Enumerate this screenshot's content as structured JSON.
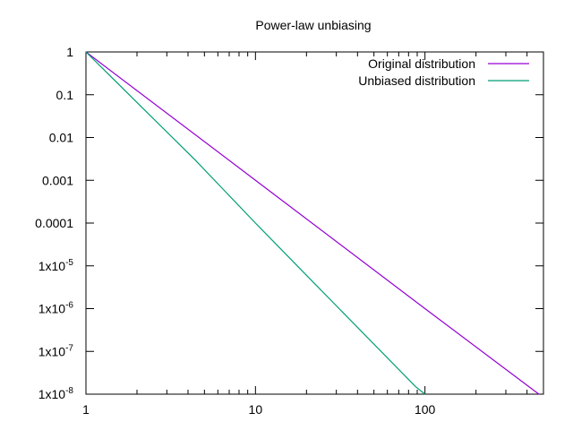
{
  "chart_data": {
    "type": "line",
    "title": "Power-law unbiasing",
    "xlabel": "",
    "ylabel": "",
    "xscale": "log",
    "yscale": "log",
    "xlim": [
      1,
      500
    ],
    "ylim": [
      1e-08,
      1
    ],
    "grid": false,
    "legend_position": "top-right",
    "x_ticks": [
      {
        "value": 1,
        "label": "1"
      },
      {
        "value": 10,
        "label": "10"
      },
      {
        "value": 100,
        "label": "100"
      }
    ],
    "y_ticks": [
      {
        "value": 1,
        "label": "1"
      },
      {
        "value": 0.1,
        "label": "0.1"
      },
      {
        "value": 0.01,
        "label": "0.01"
      },
      {
        "value": 0.001,
        "label": "0.001"
      },
      {
        "value": 0.0001,
        "label": "0.0001"
      },
      {
        "value": 1e-05,
        "base": "1x10",
        "exp": "-5"
      },
      {
        "value": 1e-06,
        "base": "1x10",
        "exp": "-6"
      },
      {
        "value": 1e-07,
        "base": "1x10",
        "exp": "-7"
      },
      {
        "value": 1e-08,
        "base": "1x10",
        "exp": "-8"
      }
    ],
    "series": [
      {
        "name": "Original distribution",
        "color": "#9400d3",
        "x": [
          1,
          10,
          100,
          470
        ],
        "y": [
          1,
          0.001,
          1e-06,
          1e-08
        ]
      },
      {
        "name": "Unbiased distribution",
        "color": "#009e73",
        "x": [
          1,
          4.4,
          10,
          20,
          88,
          100
        ],
        "y": [
          1,
          0.003,
          0.0001,
          6e-06,
          1.5e-08,
          1e-08
        ]
      }
    ]
  }
}
